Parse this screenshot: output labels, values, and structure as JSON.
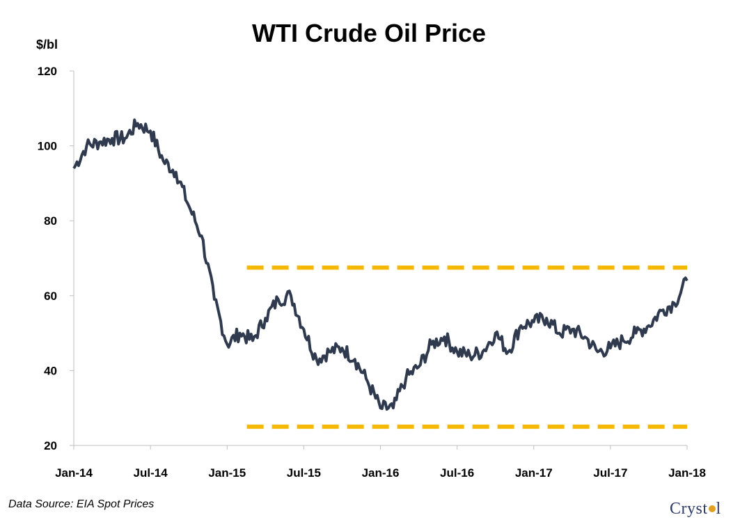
{
  "chart_data": {
    "type": "line",
    "title": "WTI Crude Oil Price",
    "ylabel": "$/bl",
    "xlabel": "",
    "ylim": [
      20,
      120
    ],
    "yticks": [
      20,
      40,
      60,
      80,
      100,
      120
    ],
    "xlim": [
      "2014-01",
      "2018-01"
    ],
    "xticks": [
      "Jan-14",
      "Jul-14",
      "Jan-15",
      "Jul-15",
      "Jan-16",
      "Jul-16",
      "Jan-17",
      "Jul-17",
      "Jan-18"
    ],
    "grid": false,
    "series": [
      {
        "color": "#2f3a4f",
        "x": [
          "2014-01",
          "2014-02",
          "2014-03",
          "2014-04",
          "2014-05",
          "2014-06",
          "2014-07",
          "2014-08",
          "2014-09",
          "2014-10",
          "2014-11",
          "2014-12",
          "2015-01",
          "2015-02",
          "2015-03",
          "2015-04",
          "2015-05",
          "2015-06",
          "2015-07",
          "2015-08",
          "2015-09",
          "2015-10",
          "2015-11",
          "2015-12",
          "2016-01",
          "2016-02",
          "2016-03",
          "2016-04",
          "2016-05",
          "2016-06",
          "2016-07",
          "2016-08",
          "2016-09",
          "2016-10",
          "2016-11",
          "2016-12",
          "2017-01",
          "2017-02",
          "2017-03",
          "2017-04",
          "2017-05",
          "2017-06",
          "2017-07",
          "2017-08",
          "2017-09",
          "2017-10",
          "2017-11",
          "2017-12",
          "2018-01"
        ],
        "y": [
          94,
          100,
          101,
          102,
          102,
          106,
          104,
          96,
          93,
          84,
          76,
          59,
          47,
          50,
          48,
          54,
          59,
          60,
          51,
          43,
          45,
          46,
          43,
          37,
          30,
          30,
          38,
          41,
          47,
          49,
          45,
          44,
          45,
          50,
          45,
          52,
          53,
          54,
          50,
          51,
          49,
          45,
          46,
          48,
          50,
          52,
          56,
          58,
          64
        ]
      }
    ],
    "reference_lines": [
      {
        "y": 67.5,
        "x_start": "2015-02",
        "color": "#f5b800",
        "style": "dashed"
      },
      {
        "y": 25,
        "x_start": "2015-02",
        "color": "#f5b800",
        "style": "dashed"
      }
    ]
  },
  "footer": {
    "source": "Data Source: EIA Spot Prices",
    "logo_text_left": "Cryst",
    "logo_text_right": "l"
  }
}
